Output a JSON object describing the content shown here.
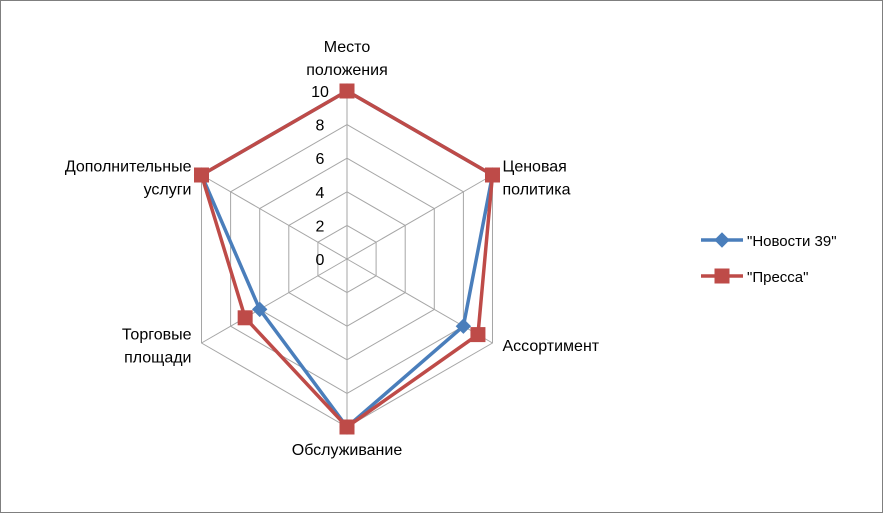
{
  "chart_data": {
    "type": "radar",
    "title": "",
    "axes": [
      [
        "Место",
        "положения"
      ],
      [
        "Ценовая",
        "политика"
      ],
      [
        "Ассортимент"
      ],
      [
        "Обслуживание"
      ],
      [
        "Торговые",
        "площади"
      ],
      [
        "Дополнительные",
        "услуги"
      ]
    ],
    "r_ticks": [
      "0",
      "2",
      "4",
      "6",
      "8",
      "10"
    ],
    "rlim": [
      0,
      10
    ],
    "grid": true,
    "legend_position": "right",
    "series": [
      {
        "name": "\"Новости 39\"",
        "color": "#4a7ebb",
        "marker": "diamond",
        "values": [
          10,
          10,
          8,
          10,
          6,
          10
        ]
      },
      {
        "name": "\"Пресса\"",
        "color": "#be4b48",
        "marker": "square",
        "values": [
          10,
          10,
          9,
          10,
          7,
          10
        ]
      }
    ]
  }
}
